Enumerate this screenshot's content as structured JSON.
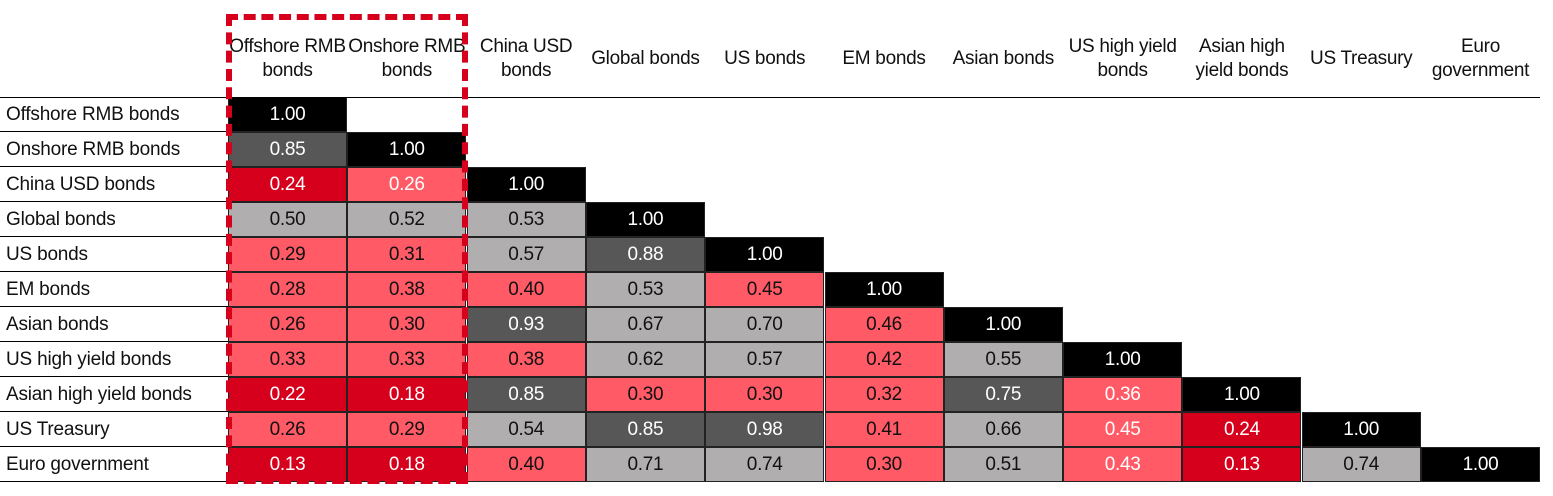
{
  "chart_data": {
    "type": "heatmap",
    "title": "",
    "columns": [
      "Offshore RMB bonds",
      "Onshore RMB bonds",
      "China USD bonds",
      "Global bonds",
      "US bonds",
      "EM bonds",
      "Asian bonds",
      "US high yield bonds",
      "Asian high yield bonds",
      "US Treasury",
      "Euro government"
    ],
    "rows": [
      "Offshore RMB bonds",
      "Onshore RMB bonds",
      "China USD bonds",
      "Global bonds",
      "US bonds",
      "EM bonds",
      "Asian bonds",
      "US high yield bonds",
      "Asian high yield bonds",
      "US Treasury",
      "Euro government"
    ],
    "values": [
      [
        "1.00"
      ],
      [
        "0.85",
        "1.00"
      ],
      [
        "0.24",
        "0.26",
        "1.00"
      ],
      [
        "0.50",
        "0.52",
        "0.53",
        "1.00"
      ],
      [
        "0.29",
        "0.31",
        "0.57",
        "0.88",
        "1.00"
      ],
      [
        "0.28",
        "0.38",
        "0.40",
        "0.53",
        "0.45",
        "1.00"
      ],
      [
        "0.26",
        "0.30",
        "0.93",
        "0.67",
        "0.70",
        "0.46",
        "1.00"
      ],
      [
        "0.33",
        "0.33",
        "0.38",
        "0.62",
        "0.57",
        "0.42",
        "0.55",
        "1.00"
      ],
      [
        "0.22",
        "0.18",
        "0.85",
        "0.30",
        "0.30",
        "0.32",
        "0.75",
        "0.36",
        "1.00"
      ],
      [
        "0.26",
        "0.29",
        "0.54",
        "0.85",
        "0.98",
        "0.41",
        "0.66",
        "0.45",
        "0.24",
        "1.00"
      ],
      [
        "0.13",
        "0.18",
        "0.40",
        "0.71",
        "0.74",
        "0.30",
        "0.51",
        "0.43",
        "0.13",
        "0.74",
        "1.00"
      ]
    ],
    "cell_colors": [
      [
        "K"
      ],
      [
        "D",
        "K"
      ],
      [
        "R",
        "Pw",
        "K"
      ],
      [
        "G",
        "G",
        "G",
        "K"
      ],
      [
        "P",
        "P",
        "G",
        "D",
        "K"
      ],
      [
        "P",
        "P",
        "P",
        "G",
        "P",
        "K"
      ],
      [
        "P",
        "P",
        "D",
        "G",
        "G",
        "P",
        "K"
      ],
      [
        "P",
        "P",
        "P",
        "G",
        "G",
        "P",
        "G",
        "K"
      ],
      [
        "R",
        "R",
        "D",
        "P",
        "P",
        "P",
        "D",
        "Pw",
        "K"
      ],
      [
        "P",
        "P",
        "G",
        "D",
        "D",
        "P",
        "G",
        "Pw",
        "R",
        "K"
      ],
      [
        "R",
        "R",
        "P",
        "G",
        "G",
        "P",
        "G",
        "Pw",
        "R",
        "G",
        "K"
      ]
    ],
    "palette": {
      "K": "#000000",
      "D": "#575757",
      "G": "#b0aeae",
      "P": "#ff5a66",
      "Pw": "#ff5a66",
      "R": "#d6001c"
    },
    "highlight": {
      "columns": [
        "Offshore RMB bonds",
        "Onshore RMB bonds"
      ],
      "color": "#d6001c",
      "style": "dashed"
    }
  }
}
